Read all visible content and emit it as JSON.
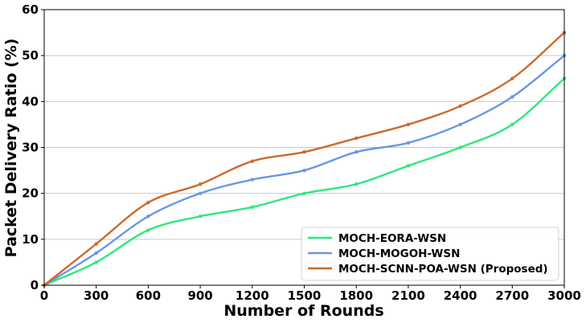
{
  "chart_data": {
    "type": "line",
    "title": "",
    "xlabel": "Number of Rounds",
    "ylabel": "Packet Delivery Ratio (%)",
    "xlim": [
      0,
      3000
    ],
    "ylim": [
      0,
      60
    ],
    "x_ticks": [
      0,
      300,
      600,
      900,
      1200,
      1500,
      1800,
      2100,
      2400,
      2700,
      3000
    ],
    "y_ticks": [
      0,
      10,
      20,
      30,
      40,
      50,
      60
    ],
    "grid": "horizontal",
    "legend_position": "bottom-right",
    "x": [
      0,
      300,
      600,
      900,
      1200,
      1500,
      1800,
      2100,
      2400,
      2700,
      3000
    ],
    "series": [
      {
        "name": "MOCH-EORA-WSN",
        "color": "#2ee87c",
        "values": [
          0,
          5,
          12,
          15,
          17,
          20,
          22,
          26,
          30,
          35,
          45
        ]
      },
      {
        "name": "MOCH-MOGOH-WSN",
        "color": "#6a96e6",
        "values": [
          0,
          7,
          15,
          20,
          23,
          25,
          29,
          31,
          35,
          41,
          50
        ]
      },
      {
        "name": "MOCH-SCNN-POA-WSN (Proposed)",
        "color": "#cd6a2c",
        "values": [
          0,
          9,
          18,
          22,
          27,
          29,
          32,
          35,
          39,
          45,
          55
        ]
      }
    ]
  }
}
